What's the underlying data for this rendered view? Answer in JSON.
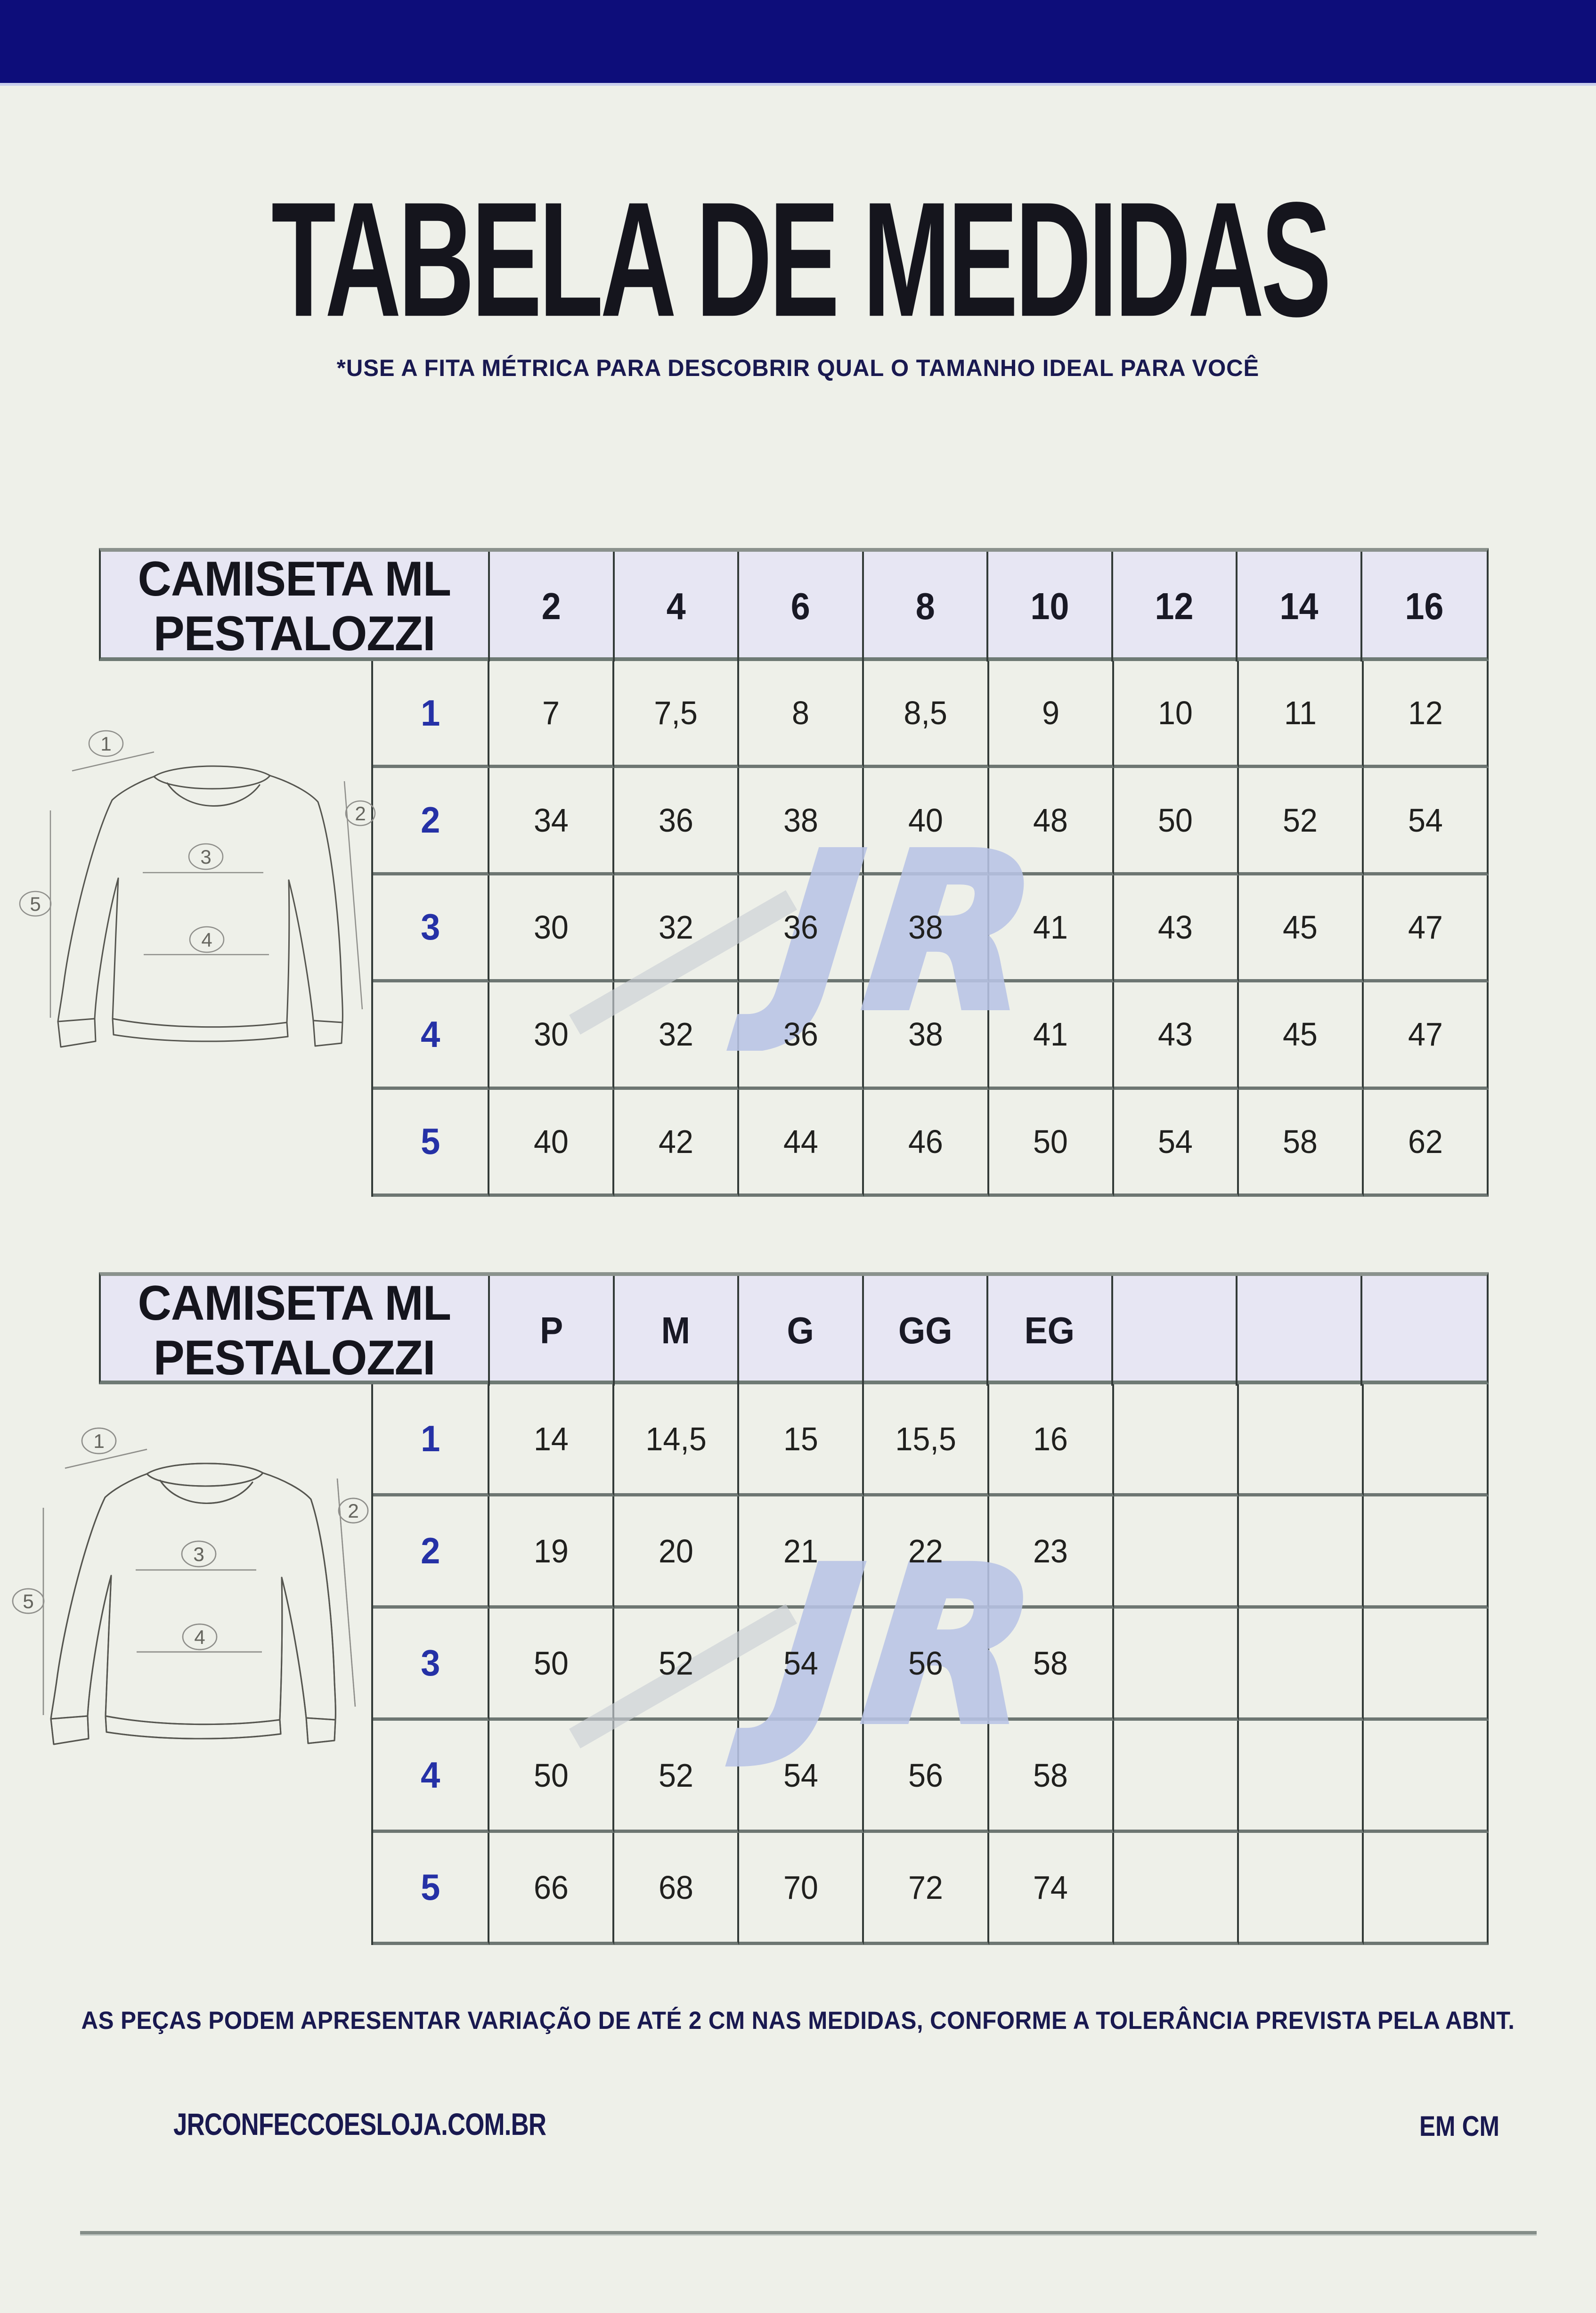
{
  "page": {
    "title": "TABELA DE MEDIDAS",
    "subtitle": "*USE A FITA MÉTRICA PARA DESCOBRIR QUAL O TAMANHO IDEAL PARA VOCÊ",
    "disclaimer": "AS PEÇAS PODEM APRESENTAR VARIAÇÃO DE ATÉ 2 CM NAS MEDIDAS, CONFORME A TOLERÂNCIA PREVISTA PELA ABNT.",
    "footer": {
      "left": "JRCONFECCOESLOJA.COM.BR",
      "right": "EM CM"
    },
    "watermark": "JR"
  },
  "colors": {
    "topbar": "#0d0d7a",
    "bg": "#eef0e9",
    "header_bg": "#e7e6f3",
    "accent_blue": "#2531a6",
    "ink": "#15151d",
    "navy": "#191950",
    "line_dark": "#333b38",
    "watermark_blue": "#b9c4e6"
  },
  "tables": [
    {
      "title_lines": [
        "CAMISETA ML",
        "PESTALOZZI"
      ],
      "columns": [
        "2",
        "4",
        "6",
        "8",
        "10",
        "12",
        "14",
        "16"
      ],
      "rows": [
        {
          "label": "1",
          "values": [
            "7",
            "7,5",
            "8",
            "8,5",
            "9",
            "10",
            "11",
            "12"
          ]
        },
        {
          "label": "2",
          "values": [
            "34",
            "36",
            "38",
            "40",
            "48",
            "50",
            "52",
            "54"
          ]
        },
        {
          "label": "3",
          "values": [
            "30",
            "32",
            "36",
            "38",
            "41",
            "43",
            "45",
            "47"
          ]
        },
        {
          "label": "4",
          "values": [
            "30",
            "32",
            "36",
            "38",
            "41",
            "43",
            "45",
            "47"
          ]
        },
        {
          "label": "5",
          "values": [
            "40",
            "42",
            "44",
            "46",
            "50",
            "54",
            "58",
            "62"
          ]
        }
      ]
    },
    {
      "title_lines": [
        "CAMISETA ML",
        "PESTALOZZI"
      ],
      "columns": [
        "P",
        "M",
        "G",
        "GG",
        "EG",
        "",
        "",
        ""
      ],
      "rows": [
        {
          "label": "1",
          "values": [
            "14",
            "14,5",
            "15",
            "15,5",
            "16",
            "",
            "",
            ""
          ]
        },
        {
          "label": "2",
          "values": [
            "19",
            "20",
            "21",
            "22",
            "23",
            "",
            "",
            ""
          ]
        },
        {
          "label": "3",
          "values": [
            "50",
            "52",
            "54",
            "56",
            "58",
            "",
            "",
            ""
          ]
        },
        {
          "label": "4",
          "values": [
            "50",
            "52",
            "54",
            "56",
            "58",
            "",
            "",
            ""
          ]
        },
        {
          "label": "5",
          "values": [
            "66",
            "68",
            "70",
            "72",
            "74",
            "",
            "",
            ""
          ]
        }
      ]
    }
  ],
  "illustration": {
    "markers": [
      "1",
      "2",
      "3",
      "4",
      "5"
    ]
  }
}
